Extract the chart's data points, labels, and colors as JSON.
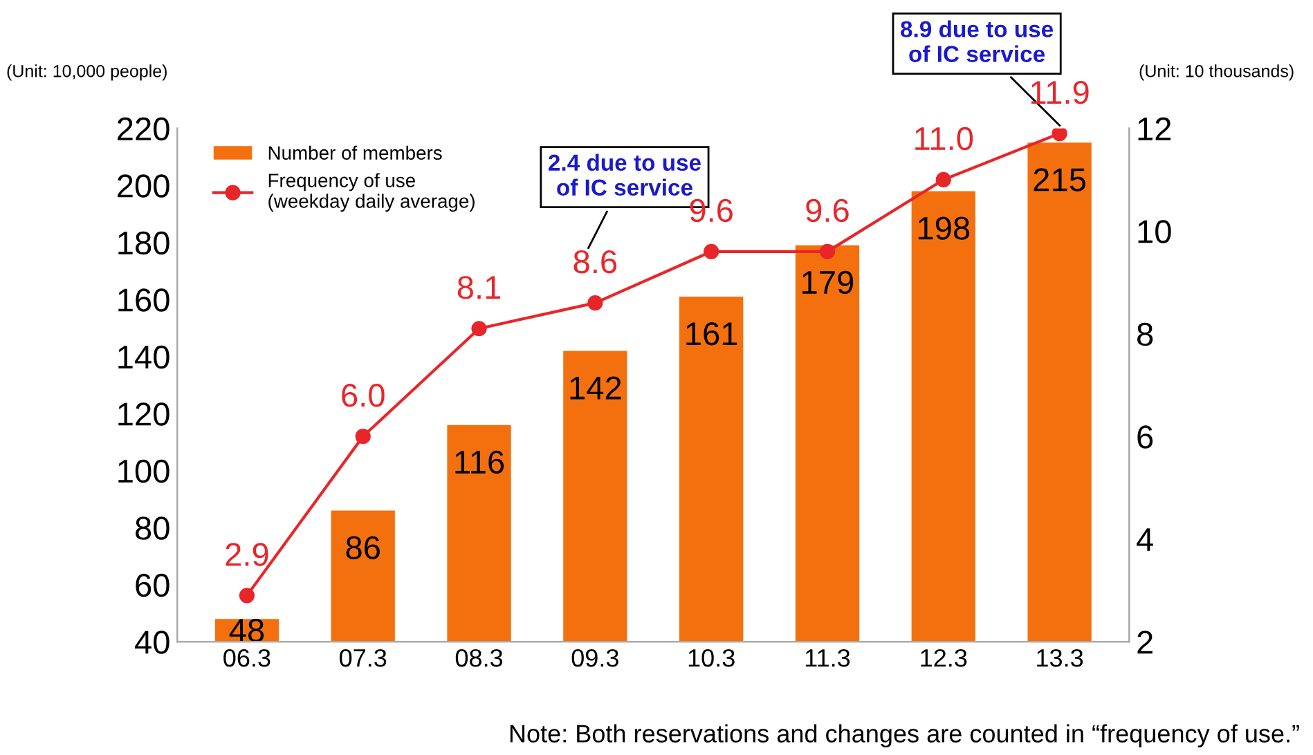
{
  "chart_data": {
    "type": "bar",
    "ylabel": "(Unit: 10,000 people)",
    "y2label": "(Unit: 10 thousands)",
    "categories": [
      "06.3",
      "07.3",
      "08.3",
      "09.3",
      "10.3",
      "11.3",
      "12.3",
      "13.3"
    ],
    "series": [
      {
        "name": "Number of members",
        "color": "#f4700e",
        "values": [
          48,
          86,
          116,
          142,
          161,
          179,
          198,
          215
        ],
        "value_labels": [
          "48",
          "86",
          "116",
          "142",
          "161",
          "179",
          "198",
          "215"
        ]
      },
      {
        "name": "Frequency of use\n(weekday daily average)",
        "type": "line",
        "axis": "y2",
        "color": "#e8262a",
        "marker": "circle",
        "values": [
          2.9,
          6.0,
          8.1,
          8.6,
          9.6,
          9.6,
          11.0,
          11.9
        ],
        "value_labels": [
          "2.9",
          "6.0",
          "8.1",
          "8.6",
          "9.6",
          "9.6",
          "11.0",
          "11.9"
        ]
      }
    ],
    "ylim": [
      40,
      220
    ],
    "yticks": [
      40,
      60,
      80,
      100,
      120,
      140,
      160,
      180,
      200,
      220
    ],
    "y2lim": [
      2,
      12
    ],
    "y2ticks": [
      2,
      4,
      6,
      8,
      10,
      12
    ],
    "grid": false,
    "legend": "top left",
    "annotations": [
      "2.4 due to use\nof IC service",
      "8.9 due to use\nof IC service",
      "Note: Both reservations and changes are counted in “frequency of use.”"
    ]
  }
}
